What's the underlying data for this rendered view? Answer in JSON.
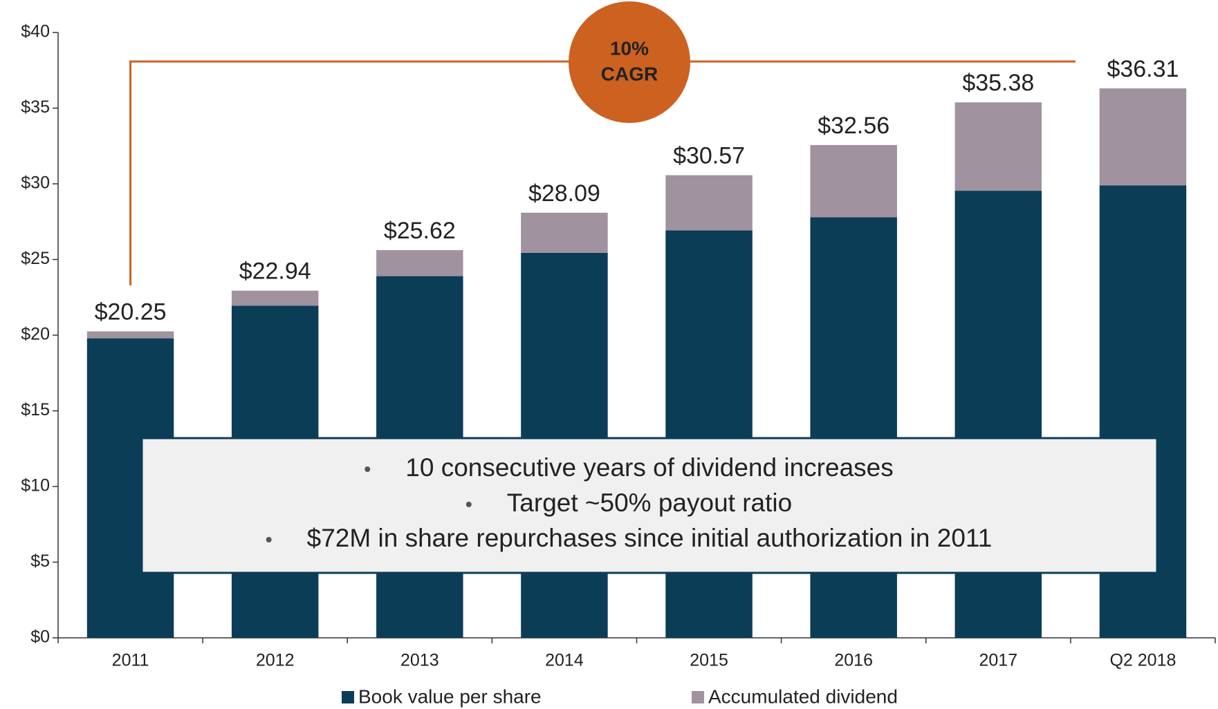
{
  "chart_data": {
    "type": "stacked_bar",
    "categories": [
      "2011",
      "2012",
      "2013",
      "2014",
      "2015",
      "2016",
      "2017",
      "Q2 2018"
    ],
    "series": [
      {
        "name": "Book value per share",
        "color": "#0b3d57",
        "values": [
          19.79,
          21.95,
          23.9,
          25.44,
          26.92,
          27.79,
          29.54,
          29.9
        ]
      },
      {
        "name": "Accumulated dividend",
        "color": "#a0929f",
        "values": [
          0.46,
          0.99,
          1.72,
          2.65,
          3.65,
          4.77,
          5.84,
          6.41
        ]
      }
    ],
    "total_labels": [
      "$20.25",
      "$22.94",
      "$25.62",
      "$28.09",
      "$30.57",
      "$32.56",
      "$35.38",
      "$36.31"
    ],
    "ylim": [
      0,
      40
    ],
    "yticks": [
      {
        "value": 0,
        "label": "$0"
      },
      {
        "value": 5,
        "label": "$5"
      },
      {
        "value": 10,
        "label": "$10"
      },
      {
        "value": 15,
        "label": "$15"
      },
      {
        "value": 20,
        "label": "$20"
      },
      {
        "value": 25,
        "label": "$25"
      },
      {
        "value": 30,
        "label": "$30"
      },
      {
        "value": 35,
        "label": "$35"
      },
      {
        "value": 40,
        "label": "$40"
      }
    ],
    "annotation": {
      "lines": [
        "10%",
        "CAGR"
      ],
      "color": "#cc6120"
    },
    "callout": [
      "10 consecutive years of dividend increases",
      "Target ~50% payout ratio",
      "$72M in share repurchases since initial authorization in 2011"
    ],
    "legend": "bottom"
  }
}
